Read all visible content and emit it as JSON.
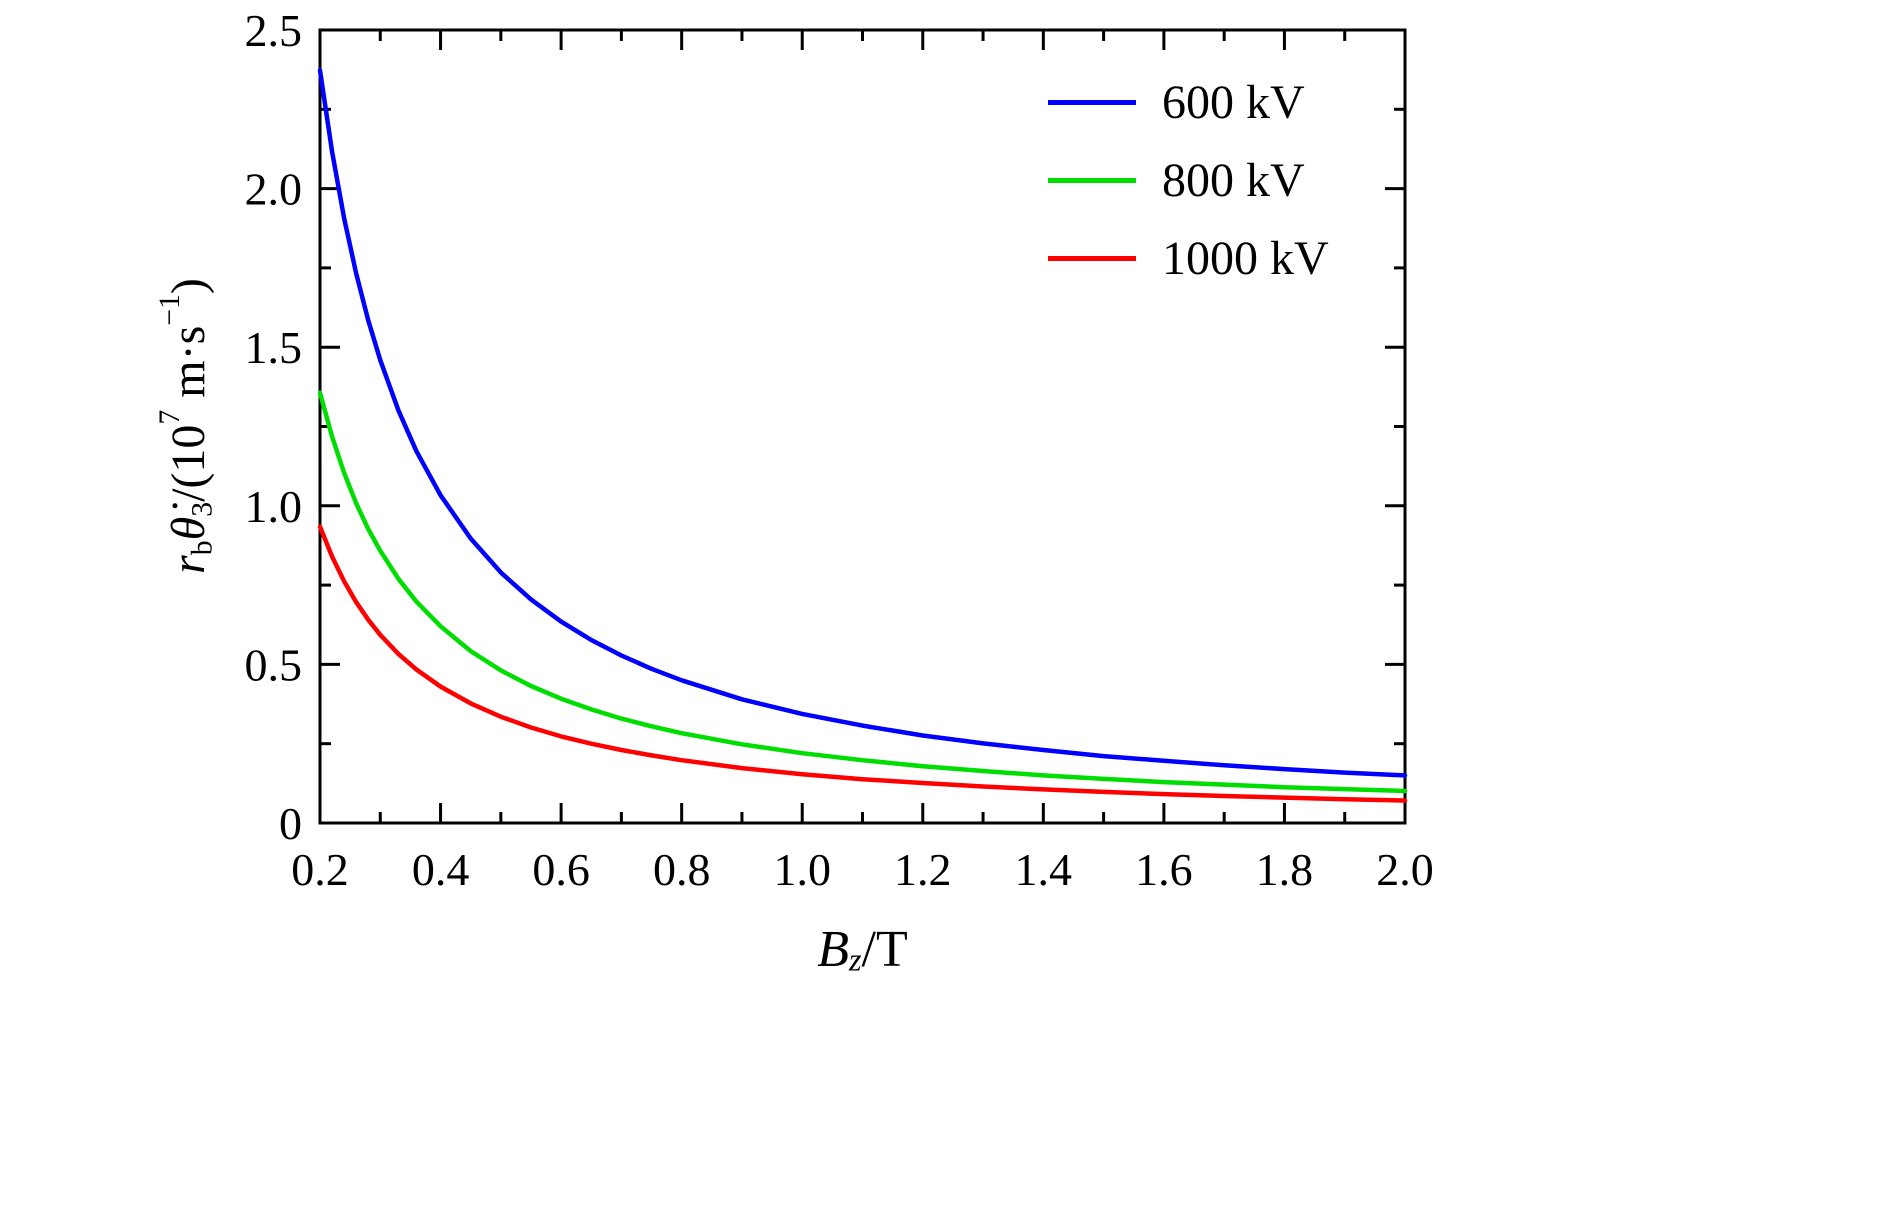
{
  "chart_data": {
    "type": "line",
    "title": "",
    "xlabel": "B_z/T",
    "ylabel": "r_b θ̇_3/(10^7 m·s^-1)",
    "xlim": [
      0.2,
      2.0
    ],
    "ylim": [
      0,
      2.5
    ],
    "grid": false,
    "legend_position": "top-right",
    "xticks": [
      0.2,
      0.4,
      0.6,
      0.8,
      1.0,
      1.2,
      1.4,
      1.6,
      1.8,
      2.0
    ],
    "xtick_labels": [
      "0.2",
      "0.4",
      "0.6",
      "0.8",
      "1.0",
      "1.2",
      "1.4",
      "1.6",
      "1.8",
      "2.0"
    ],
    "x_minor": [
      0.3,
      0.5,
      0.7,
      0.9,
      1.1,
      1.3,
      1.5,
      1.7,
      1.9
    ],
    "yticks": [
      0,
      0.5,
      1.0,
      1.5,
      2.0,
      2.5
    ],
    "ytick_labels": [
      "0",
      "0.5",
      "1.0",
      "1.5",
      "2.0",
      "2.5"
    ],
    "y_minor": [
      0.25,
      0.75,
      1.25,
      1.75,
      2.25
    ],
    "x": [
      0.2,
      0.22,
      0.24,
      0.26,
      0.28,
      0.3,
      0.33,
      0.36,
      0.4,
      0.45,
      0.5,
      0.55,
      0.6,
      0.65,
      0.7,
      0.75,
      0.8,
      0.9,
      1.0,
      1.1,
      1.2,
      1.3,
      1.4,
      1.5,
      1.6,
      1.7,
      1.8,
      1.9,
      2.0
    ],
    "series": [
      {
        "name": "600 kV",
        "color": "#0000ff",
        "values": [
          2.373,
          2.116,
          1.907,
          1.732,
          1.585,
          1.459,
          1.301,
          1.172,
          1.033,
          0.897,
          0.79,
          0.705,
          0.635,
          0.577,
          0.528,
          0.486,
          0.45,
          0.39,
          0.344,
          0.307,
          0.276,
          0.251,
          0.23,
          0.211,
          0.196,
          0.182,
          0.17,
          0.159,
          0.15
        ]
      },
      {
        "name": "800 kV",
        "color": "#00dd00",
        "values": [
          1.356,
          1.218,
          1.104,
          1.008,
          0.927,
          0.858,
          0.77,
          0.698,
          0.62,
          0.542,
          0.481,
          0.432,
          0.392,
          0.358,
          0.329,
          0.305,
          0.283,
          0.248,
          0.22,
          0.198,
          0.179,
          0.164,
          0.15,
          0.139,
          0.129,
          0.121,
          0.113,
          0.107,
          0.101
        ]
      },
      {
        "name": "1000 kV",
        "color": "#ff0000",
        "values": [
          0.934,
          0.84,
          0.762,
          0.696,
          0.641,
          0.593,
          0.533,
          0.484,
          0.43,
          0.377,
          0.335,
          0.301,
          0.273,
          0.25,
          0.23,
          0.213,
          0.198,
          0.173,
          0.154,
          0.138,
          0.126,
          0.115,
          0.106,
          0.098,
          0.091,
          0.085,
          0.08,
          0.075,
          0.071
        ]
      }
    ]
  },
  "labels": {
    "xlabel_parts": {
      "base": "B",
      "sub": "z",
      "rest": "/T"
    },
    "ylabel_parts": {
      "r": "r",
      "r_sub": "b",
      "theta": "θ̇",
      "theta_sub": "3",
      "mid": "/(10",
      "exp": "7",
      "unit": " m·s",
      "unit_exp": "−1",
      "close": ")"
    }
  }
}
